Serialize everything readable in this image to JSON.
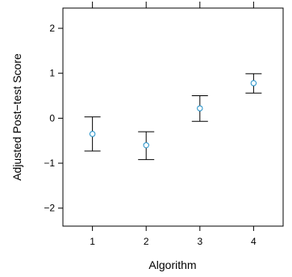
{
  "chart_data": {
    "type": "scatter",
    "xlabel": "Algorithm",
    "ylabel": "Adjusted Post−test Score",
    "categories": [
      "1",
      "2",
      "3",
      "4"
    ],
    "x": [
      1,
      2,
      3,
      4
    ],
    "series": [
      {
        "values": [
          -0.35,
          -0.6,
          0.22,
          0.78
        ],
        "lower": [
          -0.73,
          -0.92,
          -0.07,
          0.56
        ],
        "upper": [
          0.03,
          -0.3,
          0.5,
          0.99
        ]
      }
    ],
    "xlim": [
      0.45,
      4.55
    ],
    "ylim": [
      -2.4,
      2.45
    ],
    "y_ticks": [
      -2,
      -1,
      0,
      1,
      2
    ],
    "y_tick_labels": [
      "−2",
      "−1",
      "0",
      "1",
      "2"
    ],
    "grid": false,
    "legend": "none",
    "colors": {
      "point": "#1f8fc8",
      "errorbar": "#000000",
      "axis": "#000000"
    }
  }
}
